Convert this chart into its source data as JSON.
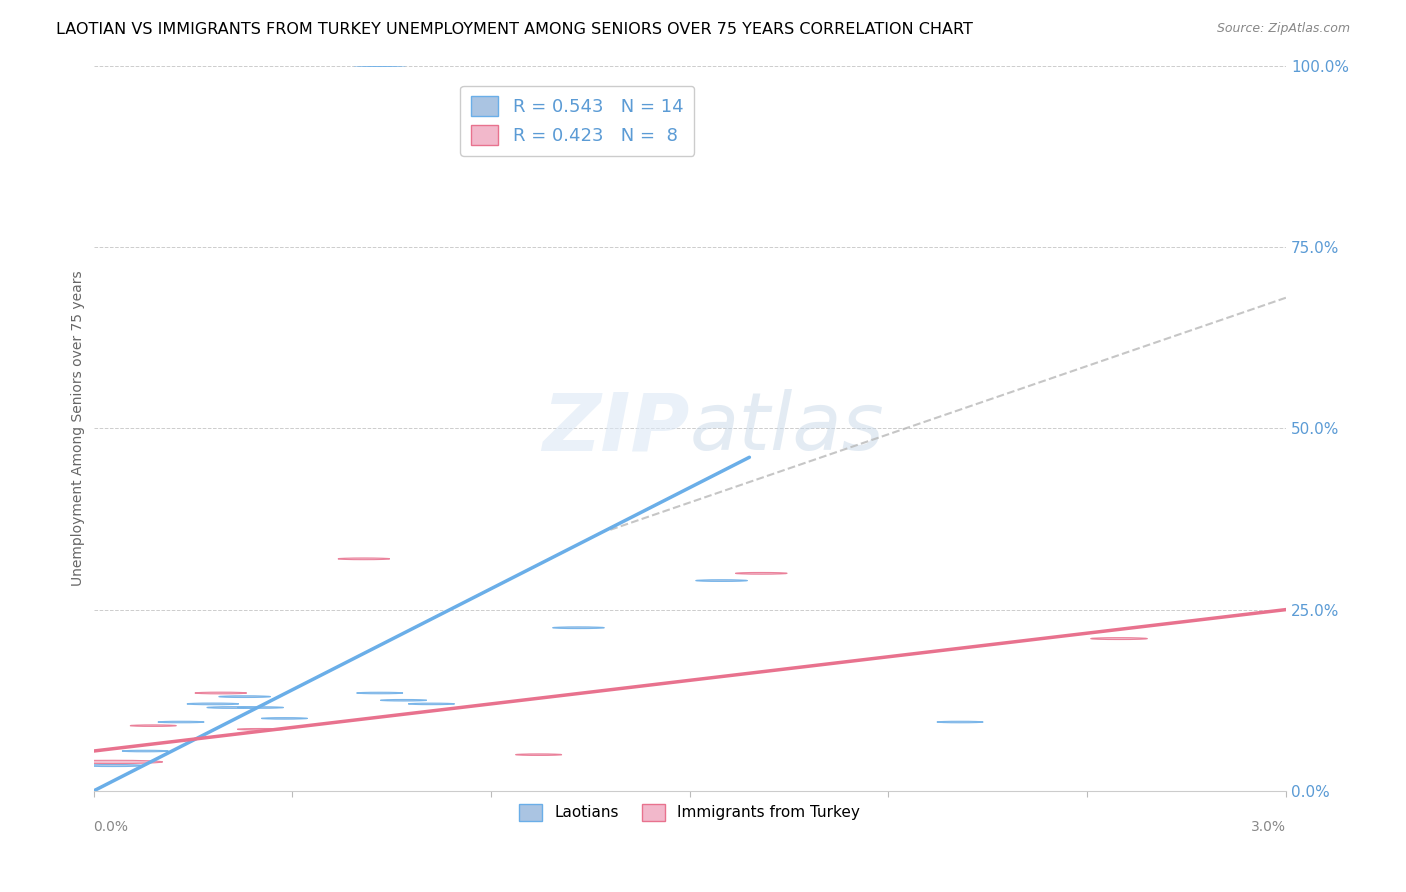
{
  "title": "LAOTIAN VS IMMIGRANTS FROM TURKEY UNEMPLOYMENT AMONG SENIORS OVER 75 YEARS CORRELATION CHART",
  "source": "Source: ZipAtlas.com",
  "ylabel": "Unemployment Among Seniors over 75 years",
  "xlim": [
    0.0,
    3.0
  ],
  "ylim": [
    0.0,
    100.0
  ],
  "yticks": [
    0.0,
    25.0,
    50.0,
    75.0,
    100.0
  ],
  "xticks": [
    0.0,
    0.5,
    1.0,
    1.5,
    2.0,
    2.5,
    3.0
  ],
  "legend_laotian_R": "0.543",
  "legend_laotian_N": "14",
  "legend_turkey_R": "0.423",
  "legend_turkey_N": "8",
  "laotian_color": "#aac4e2",
  "turkey_color": "#f2b8cb",
  "laotian_line_color": "#6aaee8",
  "turkey_line_color": "#e8728e",
  "dashed_color": "#b8b8b8",
  "label_color": "#5b9bd5",
  "laotian_x": [
    0.05,
    0.13,
    0.22,
    0.3,
    0.35,
    0.38,
    0.42,
    0.48,
    0.72,
    0.78,
    0.85,
    1.22,
    1.58,
    2.18
  ],
  "laotian_y": [
    3.5,
    5.5,
    9.5,
    12.0,
    11.5,
    13.0,
    11.5,
    10.0,
    13.5,
    12.5,
    12.0,
    22.5,
    29.0,
    9.5
  ],
  "laotian_sizes": [
    350,
    200,
    200,
    250,
    250,
    250,
    200,
    200,
    200,
    200,
    200,
    250,
    250,
    200
  ],
  "outlier_x": 0.72,
  "outlier_y": 100.0,
  "outlier_size": 250,
  "turkey_x": [
    0.05,
    0.15,
    0.32,
    0.42,
    0.68,
    1.12,
    1.68,
    2.58
  ],
  "turkey_y": [
    4.0,
    9.0,
    13.5,
    8.5,
    32.0,
    5.0,
    30.0,
    21.0
  ],
  "turkey_sizes": [
    900,
    200,
    250,
    200,
    250,
    200,
    250,
    300
  ],
  "blue_trendline_x": [
    0.0,
    1.65
  ],
  "blue_trendline_y": [
    0.0,
    46.0
  ],
  "pink_trendline_x": [
    0.0,
    3.0
  ],
  "pink_trendline_y": [
    5.5,
    25.0
  ],
  "dashed_trendline_x": [
    1.3,
    3.0
  ],
  "dashed_trendline_y": [
    36.0,
    68.0
  ],
  "background_color": "#ffffff",
  "grid_color": "#c8c8c8"
}
